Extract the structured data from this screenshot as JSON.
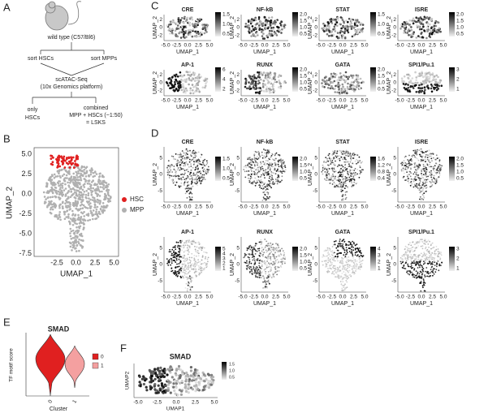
{
  "panel_labels": [
    "A",
    "B",
    "C",
    "D",
    "E",
    "F"
  ],
  "flowchart": {
    "mouse": "wild type (C57/Bl6)",
    "sort_left": "sort HSCs",
    "sort_right": "sort MPPs",
    "assay": [
      "scATAC-Seq",
      "(10x Genomics platform)"
    ],
    "left_result": [
      "only",
      "HSCs"
    ],
    "right_result": [
      "combined",
      "MPP + HSCs (~1:50)",
      "= LSKS"
    ]
  },
  "panel_b": {
    "x_label": "UMAP_1",
    "y_label": "UMAP_2",
    "xticks": [
      "-2.5",
      "0.0",
      "2.5",
      "5.0"
    ],
    "yticks": [
      "5.0",
      "2.5",
      "0.0",
      "-2.5",
      "-5.0",
      "-7.5"
    ],
    "legend": [
      {
        "name": "HSC",
        "color": "#e02020"
      },
      {
        "name": "MPP",
        "color": "#b0b0b0"
      }
    ]
  },
  "panel_c": {
    "x_label": "UMAP_1",
    "y_label": "UMAP_2",
    "xticks": [
      "-5.0",
      "-2.5",
      "0.0",
      "2.5",
      "5.0"
    ],
    "yticks": [
      "2",
      "0",
      "-2"
    ],
    "plots": [
      {
        "title": "CRE",
        "colorbar": [
          "1.5",
          "1.0",
          "0.5"
        ]
      },
      {
        "title": "NF-kB",
        "colorbar": [
          "2.0",
          "1.5",
          "1.0",
          "0.5"
        ]
      },
      {
        "title": "STAT",
        "colorbar": [
          "1.5",
          "1.0",
          "0.5"
        ]
      },
      {
        "title": "ISRE",
        "colorbar": [
          "2.0",
          "1.5",
          "1.0",
          "0.5"
        ]
      },
      {
        "title": "AP-1",
        "colorbar": [
          "6",
          "4",
          "2"
        ]
      },
      {
        "title": "RUNX",
        "colorbar": [
          "2.0",
          "1.5",
          "1.0",
          "0.5"
        ]
      },
      {
        "title": "GATA",
        "colorbar": [
          "2.0",
          "1.5",
          "1.0",
          "0.5"
        ]
      },
      {
        "title": "SPI1/Pu.1",
        "colorbar": [
          "3",
          "2",
          "1"
        ]
      }
    ]
  },
  "panel_d": {
    "x_label": "UMAP_1",
    "y_label": "UMAP_2",
    "xticks": [
      "-5.0",
      "-2.5",
      "0.0",
      "2.5",
      "5.0"
    ],
    "yticks": [
      "5",
      "0",
      "-5"
    ],
    "plots": [
      {
        "title": "CRE",
        "colorbar": [
          "1.5",
          "1.0",
          "0.5"
        ]
      },
      {
        "title": "NF-kB",
        "colorbar": [
          "2.0",
          "1.5",
          "1.0",
          "0.5"
        ]
      },
      {
        "title": "STAT",
        "colorbar": [
          "1.6",
          "1.2",
          "0.8",
          "0.4"
        ]
      },
      {
        "title": "ISRE",
        "colorbar": [
          "2.0",
          "1.5",
          "1.0",
          "0.5"
        ]
      },
      {
        "title": "AP-1",
        "colorbar": [
          "5",
          "4",
          "3",
          "2",
          "1"
        ]
      },
      {
        "title": "RUNX",
        "colorbar": [
          "2.0",
          "1.5",
          "1.0",
          "0.5"
        ]
      },
      {
        "title": "GATA",
        "colorbar": [
          "4",
          "3",
          "2",
          "1"
        ]
      },
      {
        "title": "SPI1/Pu.1",
        "colorbar": [
          "3",
          "2",
          "1"
        ]
      }
    ]
  },
  "panel_e": {
    "title": "SMAD",
    "y_label": "TF motif score",
    "x_label": "Cluster",
    "xticks": [
      "0",
      "1"
    ],
    "legend": [
      {
        "name": "0",
        "color": "#e02020"
      },
      {
        "name": "1",
        "color": "#f4a0a0"
      }
    ]
  },
  "panel_f": {
    "title": "SMAD",
    "x_label": "UMAP1",
    "y_label": "UMAP2",
    "xticks": [
      "-5.0",
      "-2.5",
      "0.0",
      "2.5",
      "5.0"
    ],
    "colorbar": [
      "1.5",
      "1.0",
      "0.5"
    ]
  }
}
